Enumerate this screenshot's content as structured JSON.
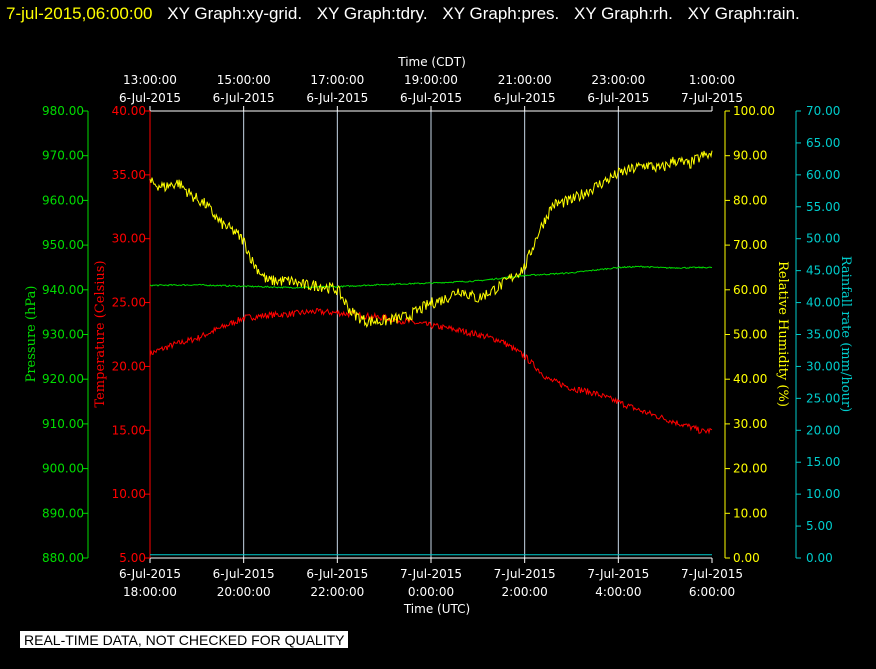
{
  "title": {
    "date": "7-jul-2015,06:00:00",
    "graphs": [
      "XY Graph:xy-grid.",
      "XY Graph:tdry.",
      "XY Graph:pres.",
      "XY Graph:rh.",
      "XY Graph:rain."
    ]
  },
  "notice": "REAL-TIME DATA, NOT CHECKED FOR QUALITY",
  "colors": {
    "temperature": "#ff0000",
    "pressure": "#00dd00",
    "humidity": "#ffff00",
    "rain": "#00cccc",
    "grid": "#c8d8e8",
    "text": "#ffffff"
  },
  "chart_data": {
    "type": "line",
    "x_unit": "hours since 6-Jul-2015 18:00 UTC",
    "xlim": [
      0,
      12
    ],
    "top_axis": {
      "label": "Time (CDT)",
      "ticks": [
        {
          "x": 0,
          "time": "13:00:00",
          "date": "6-Jul-2015"
        },
        {
          "x": 2,
          "time": "15:00:00",
          "date": "6-Jul-2015"
        },
        {
          "x": 4,
          "time": "17:00:00",
          "date": "6-Jul-2015"
        },
        {
          "x": 6,
          "time": "19:00:00",
          "date": "6-Jul-2015"
        },
        {
          "x": 8,
          "time": "21:00:00",
          "date": "6-Jul-2015"
        },
        {
          "x": 10,
          "time": "23:00:00",
          "date": "6-Jul-2015"
        },
        {
          "x": 12,
          "time": "1:00:00",
          "date": "7-Jul-2015"
        }
      ]
    },
    "bottom_axis": {
      "label": "Time (UTC)",
      "ticks": [
        {
          "x": 0,
          "date": "6-Jul-2015",
          "time": "18:00:00"
        },
        {
          "x": 2,
          "date": "6-Jul-2015",
          "time": "20:00:00"
        },
        {
          "x": 4,
          "date": "6-Jul-2015",
          "time": "22:00:00"
        },
        {
          "x": 6,
          "date": "7-Jul-2015",
          "time": "0:00:00"
        },
        {
          "x": 8,
          "date": "7-Jul-2015",
          "time": "2:00:00"
        },
        {
          "x": 10,
          "date": "7-Jul-2015",
          "time": "4:00:00"
        },
        {
          "x": 12,
          "date": "7-Jul-2015",
          "time": "6:00:00"
        }
      ]
    },
    "y_axes": {
      "pressure": {
        "label": "Pressure (hPa)",
        "ylim": [
          880,
          980
        ],
        "ticks": [
          "880.00",
          "890.00",
          "900.00",
          "910.00",
          "920.00",
          "930.00",
          "940.00",
          "950.00",
          "960.00",
          "970.00",
          "980.00"
        ]
      },
      "temperature": {
        "label": "Temperature (Celsius)",
        "ylim": [
          5,
          40
        ],
        "ticks": [
          "5.00",
          "10.00",
          "15.00",
          "20.00",
          "25.00",
          "30.00",
          "35.00",
          "40.00"
        ]
      },
      "humidity": {
        "label": "Relative Humidity (%)",
        "ylim": [
          0,
          100
        ],
        "ticks": [
          "0.00",
          "10.00",
          "20.00",
          "30.00",
          "40.00",
          "50.00",
          "60.00",
          "70.00",
          "80.00",
          "90.00",
          "100.00"
        ]
      },
      "rain": {
        "label": "Rainfall rate (mm/hour)",
        "ylim": [
          0,
          70
        ],
        "ticks": [
          "0.00",
          "5.00",
          "10.00",
          "15.00",
          "20.00",
          "25.00",
          "30.00",
          "35.00",
          "40.00",
          "45.00",
          "50.00",
          "55.00",
          "60.00",
          "65.00",
          "70.00"
        ]
      }
    },
    "series": [
      {
        "name": "tdry",
        "axis": "temperature",
        "x": [
          0,
          0.5,
          1,
          1.5,
          2,
          2.5,
          3,
          3.5,
          4,
          4.5,
          5,
          5.5,
          6,
          6.5,
          7,
          7.5,
          8,
          8.5,
          9,
          9.5,
          10,
          10.5,
          11,
          11.5,
          11.8,
          12
        ],
        "y": [
          21.0,
          21.7,
          22.2,
          23.0,
          23.8,
          24.0,
          24.1,
          24.3,
          24.2,
          24.0,
          23.8,
          23.5,
          23.2,
          22.9,
          22.5,
          22.0,
          20.8,
          19.0,
          18.3,
          17.9,
          17.2,
          16.5,
          15.9,
          15.3,
          14.9,
          15.0
        ]
      },
      {
        "name": "pres",
        "axis": "pressure",
        "x": [
          0,
          1,
          2,
          3,
          4,
          5,
          6,
          7,
          8,
          9,
          10,
          10.5,
          11,
          12
        ],
        "y": [
          941.0,
          941.1,
          940.8,
          940.5,
          940.7,
          941.2,
          941.5,
          942.0,
          943.2,
          943.8,
          945.0,
          945.2,
          944.9,
          945.0
        ]
      },
      {
        "name": "rh",
        "axis": "humidity",
        "x": [
          0,
          0.3,
          0.6,
          0.9,
          1.2,
          1.5,
          1.8,
          2.0,
          2.2,
          2.5,
          3.0,
          3.3,
          3.6,
          4.0,
          4.3,
          4.6,
          5.0,
          5.5,
          6.0,
          6.3,
          6.6,
          7.0,
          7.5,
          8.0,
          8.3,
          8.6,
          9.0,
          9.5,
          10.0,
          10.3,
          10.6,
          10.9,
          11.2,
          11.5,
          11.8,
          12.0
        ],
        "y": [
          84,
          83,
          84,
          81,
          79,
          75,
          73,
          71,
          66,
          62,
          62,
          61,
          61,
          60,
          55,
          53,
          53,
          54,
          57,
          58,
          60,
          58,
          61,
          65,
          73,
          79,
          80,
          83,
          86,
          87,
          88,
          87,
          89,
          88,
          90,
          90
        ]
      },
      {
        "name": "rain",
        "axis": "rain",
        "x": [
          0,
          12
        ],
        "y": [
          0.5,
          0.5
        ]
      }
    ],
    "grid": true
  }
}
